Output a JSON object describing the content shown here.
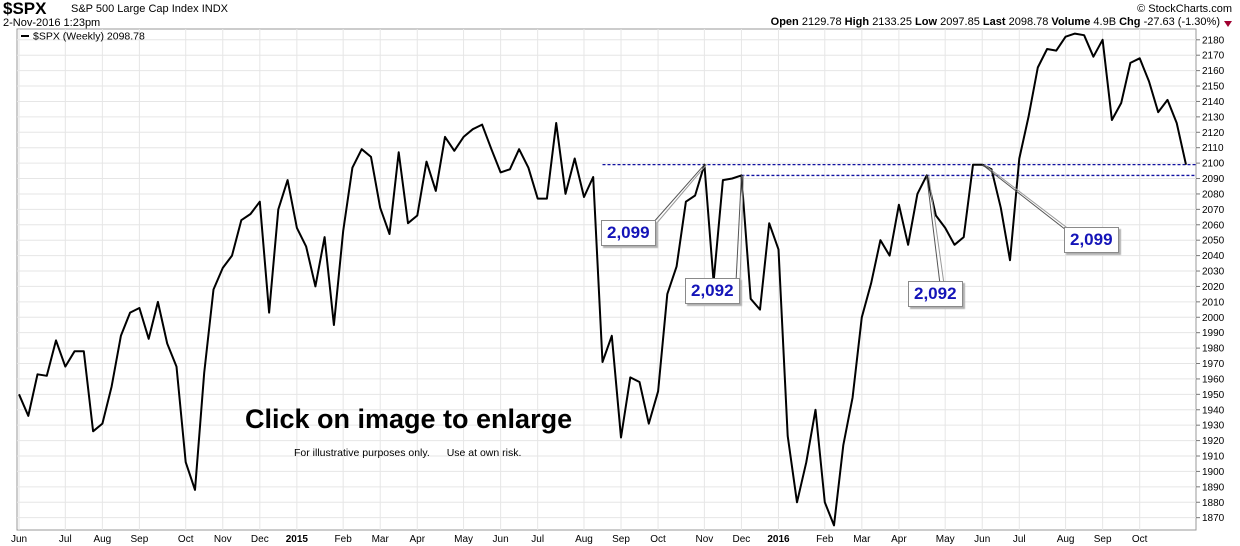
{
  "header": {
    "symbol": "$SPX",
    "name": "S&P 500 Large Cap Index",
    "exchange": "INDX",
    "date": "2-Nov-2016 1:23pm",
    "brand": "© StockCharts.com",
    "open_label": "Open",
    "open": "2129.78",
    "high_label": "High",
    "high": "2133.25",
    "low_label": "Low",
    "low": "2097.85",
    "last_label": "Last",
    "last": "2098.78",
    "volume_label": "Volume",
    "volume": "4.9B",
    "chg_label": "Chg",
    "chg": "-27.63 (-1.30%)"
  },
  "overlay": {
    "title": "Click on image to enlarge",
    "note1": "For illustrative purposes only.",
    "note2": "Use at own risk."
  },
  "chart_data": {
    "type": "line",
    "title": "",
    "legend": [
      {
        "name": "$SPX (Weekly) 2098.78",
        "placement": "top-left"
      }
    ],
    "ylim": [
      1862,
      2187
    ],
    "y_ticks": [
      1870,
      1880,
      1890,
      1900,
      1910,
      1920,
      1930,
      1940,
      1950,
      1960,
      1970,
      1980,
      1990,
      2000,
      2010,
      2020,
      2030,
      2040,
      2050,
      2060,
      2070,
      2080,
      2090,
      2100,
      2110,
      2120,
      2130,
      2140,
      2150,
      2160,
      2170,
      2180
    ],
    "x_ticks": [
      {
        "label": "Jun",
        "i": 0
      },
      {
        "label": "Jul",
        "i": 5
      },
      {
        "label": "Aug",
        "i": 9
      },
      {
        "label": "Sep",
        "i": 13
      },
      {
        "label": "Oct",
        "i": 18
      },
      {
        "label": "Nov",
        "i": 22
      },
      {
        "label": "Dec",
        "i": 26
      },
      {
        "label": "2015",
        "i": 30,
        "bold": true
      },
      {
        "label": "Feb",
        "i": 35
      },
      {
        "label": "Mar",
        "i": 39
      },
      {
        "label": "Apr",
        "i": 43
      },
      {
        "label": "May",
        "i": 48
      },
      {
        "label": "Jun",
        "i": 52
      },
      {
        "label": "Jul",
        "i": 56
      },
      {
        "label": "Aug",
        "i": 61
      },
      {
        "label": "Sep",
        "i": 65
      },
      {
        "label": "Oct",
        "i": 69
      },
      {
        "label": "Nov",
        "i": 74
      },
      {
        "label": "Dec",
        "i": 78
      },
      {
        "label": "2016",
        "i": 82,
        "bold": true
      },
      {
        "label": "Feb",
        "i": 87
      },
      {
        "label": "Mar",
        "i": 91
      },
      {
        "label": "Apr",
        "i": 95
      },
      {
        "label": "May",
        "i": 100
      },
      {
        "label": "Jun",
        "i": 104
      },
      {
        "label": "Jul",
        "i": 108
      },
      {
        "label": "Aug",
        "i": 113
      },
      {
        "label": "Sep",
        "i": 117
      },
      {
        "label": "Oct",
        "i": 121
      }
    ],
    "series": [
      {
        "name": "$SPX (Weekly)",
        "values": [
          1950,
          1936,
          1963,
          1962,
          1985,
          1968,
          1978,
          1978,
          1926,
          1931,
          1955,
          1988,
          2003,
          2006,
          1986,
          2010,
          1983,
          1968,
          1906,
          1888,
          1964,
          2018,
          2032,
          2040,
          2063,
          2067,
          2075,
          2003,
          2070,
          2089,
          2058,
          2046,
          2020,
          2052,
          1995,
          2056,
          2097,
          2109,
          2104,
          2071,
          2054,
          2107,
          2061,
          2066,
          2101,
          2082,
          2117,
          2108,
          2117,
          2122,
          2125,
          2109,
          2094,
          2096,
          2109,
          2097,
          2077,
          2077,
          2126,
          2080,
          2103,
          2078,
          2091,
          1971,
          1988,
          1922,
          1961,
          1958,
          1931,
          1952,
          2015,
          2033,
          2075,
          2079,
          2099,
          2023,
          2089,
          2090,
          2092,
          2012,
          2005,
          2061,
          2044,
          1923,
          1880,
          1906,
          1940,
          1880,
          1865,
          1917,
          1948,
          2000,
          2022,
          2050,
          2040,
          2073,
          2047,
          2080,
          2092,
          2066,
          2058,
          2047,
          2052,
          2099,
          2099,
          2096,
          2071,
          2037,
          2103,
          2130,
          2162,
          2174,
          2173,
          2182,
          2184,
          2183,
          2169,
          2180,
          2128,
          2139,
          2165,
          2168,
          2153,
          2133,
          2141,
          2126,
          2099
        ]
      }
    ],
    "reference_lines": [
      {
        "value": 2099
      },
      {
        "value": 2092
      }
    ],
    "annotations": [
      {
        "label": "2,099",
        "value": 2099,
        "i": 74
      },
      {
        "label": "2,092",
        "value": 2092,
        "i": 78
      },
      {
        "label": "2,092",
        "value": 2092,
        "i": 98
      },
      {
        "label": "2,099",
        "value": 2099,
        "i": 104
      }
    ],
    "colors": {
      "line": "#000000",
      "reference": "#1010a0",
      "callout_text": "#1414b8"
    }
  }
}
